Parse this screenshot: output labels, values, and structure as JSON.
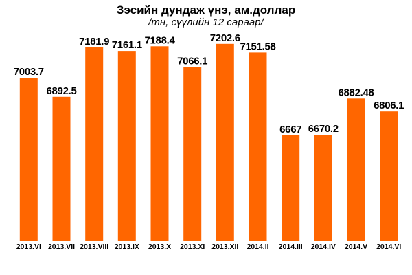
{
  "chart_data": {
    "type": "bar",
    "title": "Зэсийн дундаж үнэ, ам.доллар",
    "subtitle": "/тн, сүүлийн 12 сараар/",
    "xlabel": "",
    "ylabel": "",
    "grid": false,
    "categories": [
      "2013.VI",
      "2013.VII",
      "2013.VIII",
      "2013.IX",
      "2013.X",
      "2013.XI",
      "2013.XII",
      "2014.II",
      "2014.III",
      "2014.IV",
      "2014.V",
      "2014.VI"
    ],
    "values": [
      7003.7,
      6892.5,
      7181.9,
      7161.1,
      7188.4,
      7066.1,
      7202.6,
      7151.58,
      6667,
      6670.2,
      6882.48,
      6806.1
    ],
    "value_labels": [
      "7003.7",
      "6892.5",
      "7181.9",
      "7161.1",
      "7188.4",
      "7066.1",
      "7202.6",
      "7151.58",
      "6667",
      "6670.2",
      "6882.48",
      "6806.1"
    ],
    "ylim": [
      6050,
      7250
    ],
    "bar_color": "#FF6600"
  }
}
